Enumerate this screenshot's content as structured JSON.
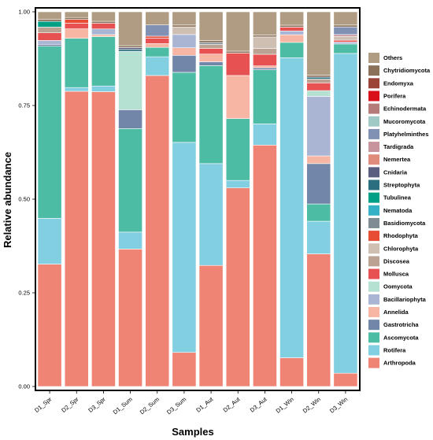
{
  "chart_data": {
    "type": "bar",
    "stacked": true,
    "xlabel": "Samples",
    "ylabel": "Relative abundance",
    "ylim": [
      0,
      1
    ],
    "yticks": [
      "0.00",
      "0.25",
      "0.50",
      "0.75",
      "1.00"
    ],
    "ytick_values": [
      0,
      0.25,
      0.5,
      0.75,
      1.0
    ],
    "categories": [
      "D1_Spr",
      "D2_Spr",
      "D3_Spr",
      "D1_Sum",
      "D2_Sum",
      "D3_Sum",
      "D1_Aut",
      "D2_Aut",
      "D3_Aut",
      "D1_Win",
      "D2_Win",
      "D3_Win"
    ],
    "legend_position": "right",
    "series": [
      {
        "name": "Arthropoda",
        "color": "#ef8475",
        "values": [
          0.32,
          0.78,
          0.775,
          0.365,
          0.83,
          0.09,
          0.315,
          0.53,
          0.625,
          0.075,
          0.345,
          0.035
        ]
      },
      {
        "name": "Rotifera",
        "color": "#82cfe1",
        "values": [
          0.12,
          0.01,
          0.015,
          0.045,
          0.05,
          0.555,
          0.265,
          0.02,
          0.055,
          0.785,
          0.085,
          0.845
        ]
      },
      {
        "name": "Ascomycota",
        "color": "#4dbca5",
        "values": [
          0.45,
          0.13,
          0.13,
          0.275,
          0.025,
          0.185,
          0.255,
          0.165,
          0.14,
          0.04,
          0.045,
          0.025
        ]
      },
      {
        "name": "Gastrotricha",
        "color": "#7186a9",
        "values": [
          0.005,
          0.0,
          0.0,
          0.05,
          0.0,
          0.045,
          0.01,
          0.0,
          0.005,
          0.0,
          0.105,
          0.0
        ]
      },
      {
        "name": "Annelida",
        "color": "#f6b6a3",
        "values": [
          0.0,
          0.025,
          0.005,
          0.0,
          0.01,
          0.02,
          0.02,
          0.115,
          0.005,
          0.02,
          0.02,
          0.0
        ]
      },
      {
        "name": "Bacillariophyta",
        "color": "#a9b5d3",
        "values": [
          0.01,
          0.0,
          0.015,
          0.0,
          0.0,
          0.035,
          0.0,
          0.0,
          0.0,
          0.01,
          0.155,
          0.005
        ]
      },
      {
        "name": "Oomycota",
        "color": "#b5e1d3",
        "values": [
          0.0,
          0.0,
          0.0,
          0.155,
          0.0,
          0.0,
          0.0,
          0.0,
          0.0,
          0.0,
          0.015,
          0.0
        ]
      },
      {
        "name": "Mollusca",
        "color": "#e85151",
        "values": [
          0.02,
          0.015,
          0.015,
          0.0,
          0.015,
          0.0,
          0.015,
          0.06,
          0.03,
          0.01,
          0.02,
          0.005
        ]
      },
      {
        "name": "Discosea",
        "color": "#bba394",
        "values": [
          0.015,
          0.0,
          0.0,
          0.0,
          0.0,
          0.0,
          0.01,
          0.0,
          0.015,
          0.0,
          0.01,
          0.0
        ]
      },
      {
        "name": "Chlorophyta",
        "color": "#cebfb2",
        "values": [
          0.0,
          0.0,
          0.0,
          0.0,
          0.0,
          0.02,
          0.0,
          0.0,
          0.03,
          0.0,
          0.0,
          0.01
        ]
      },
      {
        "name": "Rhodophyta",
        "color": "#e74c35",
        "values": [
          0.0,
          0.01,
          0.0,
          0.0,
          0.005,
          0.0,
          0.0,
          0.0,
          0.0,
          0.0,
          0.0,
          0.0
        ]
      },
      {
        "name": "Basidiomycota",
        "color": "#7f8c93",
        "values": [
          0.0,
          0.0,
          0.0,
          0.0,
          0.0,
          0.0,
          0.005,
          0.0,
          0.0,
          0.0,
          0.0,
          0.0
        ]
      },
      {
        "name": "Nematoda",
        "color": "#35b1c6",
        "values": [
          0.0,
          0.0,
          0.0,
          0.0,
          0.0,
          0.0,
          0.0,
          0.0,
          0.0,
          0.0,
          0.0,
          0.0
        ]
      },
      {
        "name": "Tubulinea",
        "color": "#00a087",
        "values": [
          0.015,
          0.0,
          0.0,
          0.0,
          0.0,
          0.0,
          0.0,
          0.0,
          0.0,
          0.0,
          0.0,
          0.0
        ]
      },
      {
        "name": "Streptophyta",
        "color": "#2b6e7f",
        "values": [
          0.0,
          0.0,
          0.0,
          0.005,
          0.0,
          0.0,
          0.0,
          0.0,
          0.0,
          0.0,
          0.005,
          0.0
        ]
      },
      {
        "name": "Cnidaria",
        "color": "#5a5f80",
        "values": [
          0.0,
          0.0,
          0.0,
          0.005,
          0.0,
          0.0,
          0.0,
          0.0,
          0.0,
          0.0,
          0.0,
          0.0
        ]
      },
      {
        "name": "Nemertea",
        "color": "#e08c7b",
        "values": [
          0.0,
          0.0,
          0.0,
          0.0,
          0.0,
          0.0,
          0.0,
          0.0,
          0.0,
          0.0,
          0.0,
          0.0
        ]
      },
      {
        "name": "Tardigrada",
        "color": "#c7949d",
        "values": [
          0.0,
          0.0,
          0.0,
          0.0,
          0.0,
          0.0,
          0.0,
          0.0,
          0.0,
          0.0,
          0.0,
          0.005
        ]
      },
      {
        "name": "Platyhelminthes",
        "color": "#8091b3",
        "values": [
          0.0,
          0.0,
          0.0,
          0.0,
          0.03,
          0.0,
          0.0,
          0.0,
          0.0,
          0.0,
          0.0,
          0.02
        ]
      },
      {
        "name": "Mucoromycota",
        "color": "#9fc9c5",
        "values": [
          0.0,
          0.0,
          0.0,
          0.0,
          0.0,
          0.0,
          0.0,
          0.0,
          0.0,
          0.0,
          0.0,
          0.0
        ]
      },
      {
        "name": "Echinodermata",
        "color": "#b57b79",
        "values": [
          0.0,
          0.0,
          0.0,
          0.0,
          0.0,
          0.0,
          0.0,
          0.0,
          0.0,
          0.0,
          0.0,
          0.0
        ]
      },
      {
        "name": "Porifera",
        "color": "#d9101a",
        "values": [
          0.0,
          0.0,
          0.0,
          0.0,
          0.0,
          0.0,
          0.0,
          0.0,
          0.0,
          0.0,
          0.0,
          0.0
        ]
      },
      {
        "name": "Endomyxa",
        "color": "#9a4336",
        "values": [
          0.0,
          0.0,
          0.0,
          0.0,
          0.0,
          0.0,
          0.0,
          0.0,
          0.0,
          0.0,
          0.0,
          0.0
        ]
      },
      {
        "name": "Chytridiomycota",
        "color": "#8b705a",
        "values": [
          0.005,
          0.005,
          0.005,
          0.005,
          0.0,
          0.005,
          0.005,
          0.005,
          0.005,
          0.005,
          0.005,
          0.005
        ]
      },
      {
        "name": "Others",
        "color": "#b09c83",
        "values": [
          0.02,
          0.015,
          0.025,
          0.09,
          0.035,
          0.035,
          0.075,
          0.105,
          0.06,
          0.035,
          0.165,
          0.035
        ]
      }
    ]
  }
}
